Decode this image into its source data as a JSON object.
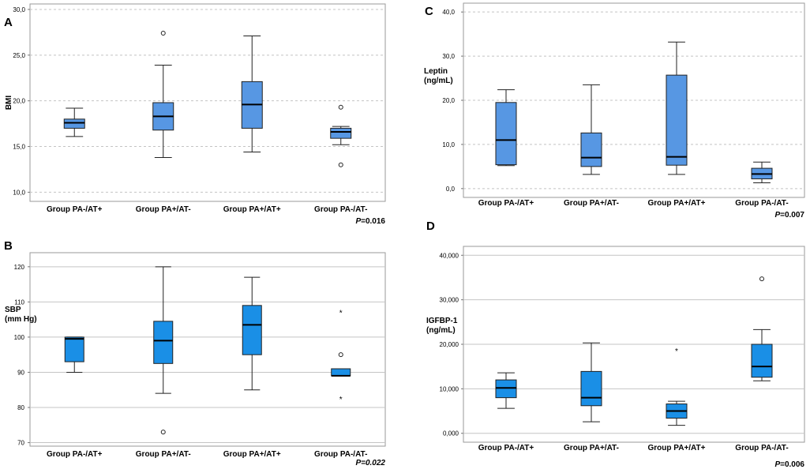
{
  "chart_data": [
    {
      "type": "box",
      "panel_letter": "A",
      "ylabel": [
        "BMI"
      ],
      "ylim": [
        9,
        30.6
      ],
      "ticks": [
        10,
        15,
        20,
        25,
        30
      ],
      "tick_labels": [
        "10,0",
        "15,0",
        "20,0",
        "25,0",
        "30,0"
      ],
      "grid": "dashed",
      "box_color": "#5797e3",
      "categories": [
        "Group PA-/AT+",
        "Group PA+/AT-",
        "Group PA+/AT+",
        "Group PA-/AT-"
      ],
      "boxes": [
        {
          "min": 16.1,
          "q1": 17.0,
          "median": 17.6,
          "q3": 18.0,
          "max": 19.2,
          "outliers": [],
          "extremes": []
        },
        {
          "min": 13.8,
          "q1": 16.8,
          "median": 18.3,
          "q3": 19.8,
          "max": 23.9,
          "outliers": [
            27.4
          ],
          "extremes": []
        },
        {
          "min": 14.4,
          "q1": 17.0,
          "median": 19.6,
          "q3": 22.1,
          "max": 27.1,
          "outliers": [],
          "extremes": []
        },
        {
          "min": 15.2,
          "q1": 15.9,
          "median": 16.6,
          "q3": 17.0,
          "max": 17.2,
          "outliers": [
            19.3,
            13.0
          ],
          "extremes": []
        }
      ],
      "p_value": {
        "label": "P",
        "value": "=0.016"
      }
    },
    {
      "type": "box",
      "panel_letter": "B",
      "ylabel": [
        "SBP",
        "(mm Hg)"
      ],
      "ylim": [
        69,
        124
      ],
      "ticks": [
        70,
        80,
        90,
        100,
        110,
        120
      ],
      "tick_labels": [
        "70",
        "80",
        "90",
        "100",
        "110",
        "120"
      ],
      "grid": "solid",
      "box_color": "#1a8fe6",
      "categories": [
        "Group PA-/AT+",
        "Group PA+/AT-",
        "Group PA+/AT+",
        "Group PA-/AT-"
      ],
      "boxes": [
        {
          "min": 90,
          "q1": 93,
          "median": 99.5,
          "q3": 100,
          "max": 100,
          "outliers": [],
          "extremes": []
        },
        {
          "min": 84,
          "q1": 92.5,
          "median": 99,
          "q3": 104.5,
          "max": 120,
          "outliers": [
            73
          ],
          "extremes": []
        },
        {
          "min": 85,
          "q1": 95,
          "median": 103.5,
          "q3": 109,
          "max": 117,
          "outliers": [],
          "extremes": []
        },
        {
          "min": 89,
          "q1": 89,
          "median": 89,
          "q3": 91,
          "max": 91,
          "outliers": [
            95
          ],
          "extremes": [
            107,
            82.5
          ]
        }
      ],
      "p_value": {
        "label": "P",
        "value": "=0.022"
      }
    },
    {
      "type": "box",
      "panel_letter": "C",
      "ylabel": [
        "Leptin",
        "(ng/mL)"
      ],
      "ylim": [
        -2,
        42
      ],
      "ticks": [
        0,
        10,
        20,
        30,
        40
      ],
      "tick_labels": [
        "0,0",
        "10,0",
        "20,0",
        "30,0",
        "40,0"
      ],
      "grid": "dashed",
      "box_color": "#5797e3",
      "categories": [
        "Group PA-/AT+",
        "Group PA+/AT-",
        "Group PA+/AT+",
        "Group PA-/AT-"
      ],
      "boxes": [
        {
          "min": 5.2,
          "q1": 5.4,
          "median": 11.0,
          "q3": 19.5,
          "max": 22.4,
          "outliers": [],
          "extremes": []
        },
        {
          "min": 3.2,
          "q1": 5.0,
          "median": 7.0,
          "q3": 12.6,
          "max": 23.5,
          "outliers": [],
          "extremes": []
        },
        {
          "min": 3.2,
          "q1": 5.3,
          "median": 7.2,
          "q3": 25.7,
          "max": 33.2,
          "outliers": [],
          "extremes": []
        },
        {
          "min": 1.3,
          "q1": 2.2,
          "median": 3.3,
          "q3": 4.6,
          "max": 6.0,
          "outliers": [],
          "extremes": []
        }
      ],
      "p_value": {
        "label": "P",
        "value": "=0.007"
      }
    },
    {
      "type": "box",
      "panel_letter": "D",
      "ylabel": [
        "IGFBP-1",
        "(ng/mL)"
      ],
      "ylim": [
        -2000,
        42000
      ],
      "ticks": [
        0,
        10000,
        20000,
        30000,
        40000
      ],
      "tick_labels": [
        "0,000",
        "10,000",
        "20,000",
        "30,000",
        "40,000"
      ],
      "grid": "solid",
      "box_color": "#1a8fe6",
      "categories": [
        "Group PA-/AT+",
        "Group PA+/AT-",
        "Group PA+/AT+",
        "Group PA-/AT-"
      ],
      "boxes": [
        {
          "min": 5600,
          "q1": 8000,
          "median": 10200,
          "q3": 12000,
          "max": 13600,
          "outliers": [],
          "extremes": []
        },
        {
          "min": 2600,
          "q1": 6200,
          "median": 8000,
          "q3": 13900,
          "max": 20300,
          "outliers": [],
          "extremes": []
        },
        {
          "min": 1800,
          "q1": 3400,
          "median": 5000,
          "q3": 6600,
          "max": 7200,
          "outliers": [],
          "extremes": [
            18600
          ]
        },
        {
          "min": 11800,
          "q1": 12600,
          "median": 15000,
          "q3": 20000,
          "max": 23300,
          "outliers": [
            34700
          ],
          "extremes": []
        }
      ],
      "p_value": {
        "label": "P",
        "value": "=0.006"
      }
    }
  ]
}
